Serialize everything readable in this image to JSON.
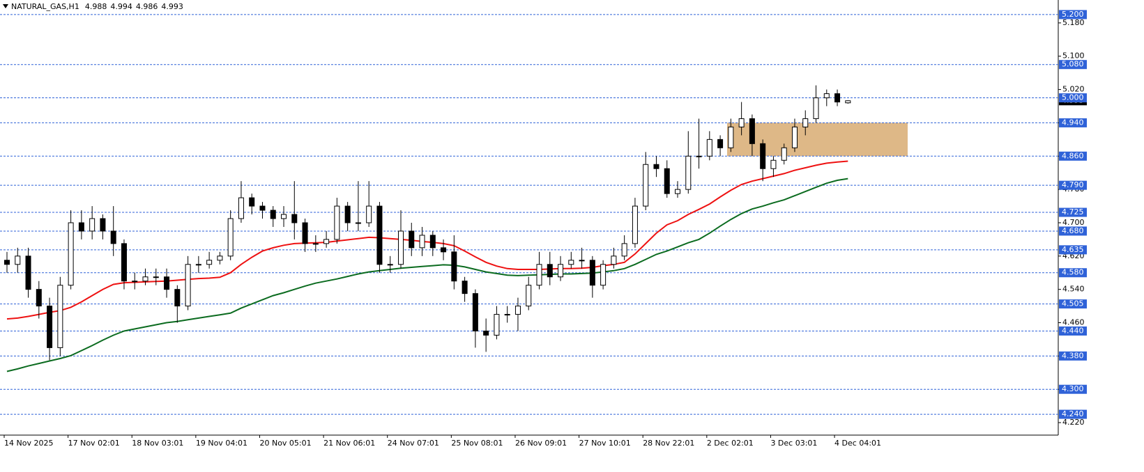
{
  "chart_data": {
    "type": "candlestick",
    "symbol": "NATURAL_GAS,H1",
    "categories": [
      "14 Nov 2025",
      null,
      null,
      null,
      null,
      null,
      "17 Nov 02:01",
      null,
      null,
      null,
      null,
      null,
      "18 Nov 03:01",
      null,
      null,
      null,
      null,
      null,
      "19 Nov 04:01",
      null,
      null,
      null,
      null,
      null,
      "20 Nov 05:01",
      null,
      null,
      null,
      null,
      null,
      "21 Nov 06:01",
      null,
      null,
      null,
      null,
      null,
      "24 Nov 07:01",
      null,
      null,
      null,
      null,
      null,
      "25 Nov 08:01",
      null,
      null,
      null,
      null,
      null,
      "26 Nov 09:01",
      null,
      null,
      null,
      null,
      null,
      "27 Nov 10:01",
      null,
      null,
      null,
      null,
      null,
      "28 Nov 22:01",
      null,
      null,
      null,
      null,
      null,
      "2 Dec 02:01",
      null,
      null,
      null,
      null,
      null,
      "3 Dec 03:01",
      null,
      null,
      null,
      null,
      null,
      "4 Dec 04:01",
      null
    ],
    "open": [
      4.61,
      4.6,
      4.62,
      4.54,
      4.5,
      4.4,
      4.55,
      4.7,
      4.68,
      4.71,
      4.68,
      4.65,
      4.56,
      4.56,
      4.57,
      4.57,
      4.54,
      4.5,
      4.6,
      4.6,
      4.61,
      4.62,
      4.71,
      4.76,
      4.74,
      4.73,
      4.71,
      4.72,
      4.7,
      4.65,
      4.65,
      4.66,
      4.74,
      4.7,
      4.7,
      4.74,
      4.6,
      4.6,
      4.68,
      4.64,
      4.67,
      4.64,
      4.63,
      4.56,
      4.53,
      4.44,
      4.43,
      4.48,
      4.48,
      4.5,
      4.55,
      4.6,
      4.57,
      4.6,
      4.61,
      4.61,
      4.55,
      4.6,
      4.62,
      4.65,
      4.74,
      4.84,
      4.83,
      4.77,
      4.78,
      4.86,
      4.86,
      4.9,
      4.88,
      4.93,
      4.95,
      4.89,
      4.83,
      4.85,
      4.88,
      4.93,
      4.95,
      5.0,
      5.01,
      4.988
    ],
    "high": [
      4.63,
      4.64,
      4.64,
      4.56,
      4.52,
      4.57,
      4.73,
      4.73,
      4.74,
      4.72,
      4.74,
      4.66,
      4.58,
      4.59,
      4.59,
      4.59,
      4.55,
      4.62,
      4.62,
      4.63,
      4.63,
      4.73,
      4.8,
      4.77,
      4.75,
      4.74,
      4.74,
      4.8,
      4.71,
      4.67,
      4.68,
      4.76,
      4.75,
      4.8,
      4.8,
      4.75,
      4.62,
      4.73,
      4.7,
      4.69,
      4.68,
      4.66,
      4.67,
      4.57,
      4.54,
      4.47,
      4.5,
      4.5,
      4.52,
      4.57,
      4.63,
      4.63,
      4.62,
      4.63,
      4.64,
      4.62,
      4.61,
      4.64,
      4.67,
      4.76,
      4.87,
      4.86,
      4.85,
      4.8,
      4.92,
      4.95,
      4.92,
      4.91,
      4.95,
      4.99,
      4.96,
      4.9,
      4.86,
      4.89,
      4.95,
      4.97,
      5.03,
      5.02,
      5.02,
      4.994
    ],
    "low": [
      4.58,
      4.58,
      4.52,
      4.47,
      4.37,
      4.38,
      4.54,
      4.66,
      4.66,
      4.66,
      4.62,
      4.54,
      4.54,
      4.55,
      4.55,
      4.52,
      4.46,
      4.49,
      4.58,
      4.59,
      4.6,
      4.61,
      4.7,
      4.72,
      4.71,
      4.69,
      4.69,
      4.66,
      4.63,
      4.63,
      4.64,
      4.65,
      4.68,
      4.68,
      4.69,
      4.58,
      4.58,
      4.59,
      4.62,
      4.62,
      4.62,
      4.61,
      4.54,
      4.51,
      4.4,
      4.39,
      4.42,
      4.46,
      4.44,
      4.49,
      4.54,
      4.55,
      4.56,
      4.59,
      4.59,
      4.52,
      4.54,
      4.59,
      4.61,
      4.64,
      4.73,
      4.81,
      4.76,
      4.76,
      4.77,
      4.83,
      4.85,
      4.86,
      4.87,
      4.91,
      4.86,
      4.8,
      4.81,
      4.84,
      4.87,
      4.91,
      4.94,
      4.98,
      4.98,
      4.986
    ],
    "close": [
      4.6,
      4.62,
      4.54,
      4.5,
      4.4,
      4.55,
      4.7,
      4.68,
      4.71,
      4.68,
      4.65,
      4.56,
      4.56,
      4.57,
      4.57,
      4.54,
      4.5,
      4.6,
      4.6,
      4.61,
      4.62,
      4.71,
      4.76,
      4.74,
      4.73,
      4.71,
      4.72,
      4.7,
      4.65,
      4.65,
      4.66,
      4.74,
      4.7,
      4.7,
      4.74,
      4.6,
      4.6,
      4.68,
      4.64,
      4.67,
      4.64,
      4.63,
      4.56,
      4.53,
      4.44,
      4.43,
      4.48,
      4.48,
      4.5,
      4.55,
      4.6,
      4.57,
      4.6,
      4.61,
      4.61,
      4.55,
      4.6,
      4.62,
      4.65,
      4.74,
      4.84,
      4.83,
      4.77,
      4.78,
      4.86,
      4.86,
      4.9,
      4.88,
      4.93,
      4.95,
      4.89,
      4.83,
      4.85,
      4.88,
      4.93,
      4.95,
      5.0,
      5.01,
      4.99,
      4.993
    ],
    "series": [
      {
        "color": "#ee1111",
        "values": [
          4.469,
          4.471,
          4.475,
          4.48,
          4.485,
          4.489,
          4.497,
          4.51,
          4.525,
          4.54,
          4.552,
          4.556,
          4.557,
          4.558,
          4.559,
          4.56,
          4.562,
          4.564,
          4.566,
          4.567,
          4.569,
          4.58,
          4.6,
          4.617,
          4.632,
          4.64,
          4.646,
          4.65,
          4.651,
          4.652,
          4.653,
          4.656,
          4.659,
          4.662,
          4.665,
          4.664,
          4.662,
          4.66,
          4.658,
          4.655,
          4.653,
          4.65,
          4.645,
          4.632,
          4.618,
          4.605,
          4.596,
          4.59,
          4.588,
          4.588,
          4.588,
          4.589,
          4.59,
          4.59,
          4.591,
          4.593,
          4.597,
          4.6,
          4.605,
          4.625,
          4.65,
          4.675,
          4.695,
          4.705,
          4.72,
          4.732,
          4.745,
          4.762,
          4.778,
          4.792,
          4.8,
          4.806,
          4.812,
          4.818,
          4.826,
          4.832,
          4.838,
          4.843,
          4.846,
          4.848
        ]
      },
      {
        "color": "#0b6b1f",
        "values": [
          4.343,
          4.349,
          4.356,
          4.362,
          4.368,
          4.374,
          4.381,
          4.393,
          4.405,
          4.418,
          4.43,
          4.44,
          4.445,
          4.45,
          4.455,
          4.46,
          4.463,
          4.467,
          4.471,
          4.475,
          4.479,
          4.483,
          4.495,
          4.505,
          4.515,
          4.525,
          4.532,
          4.54,
          4.548,
          4.555,
          4.56,
          4.565,
          4.571,
          4.577,
          4.582,
          4.585,
          4.588,
          4.591,
          4.593,
          4.595,
          4.597,
          4.599,
          4.598,
          4.594,
          4.588,
          4.582,
          4.578,
          4.574,
          4.573,
          4.574,
          4.575,
          4.576,
          4.577,
          4.577,
          4.578,
          4.579,
          4.582,
          4.585,
          4.59,
          4.6,
          4.612,
          4.624,
          4.632,
          4.642,
          4.652,
          4.66,
          4.675,
          4.692,
          4.708,
          4.722,
          4.733,
          4.74,
          4.748,
          4.755,
          4.765,
          4.775,
          4.785,
          4.795,
          4.802,
          4.806
        ]
      }
    ],
    "ylim": [
      4.19,
      5.235
    ],
    "yticks": [
      {
        "value": 4.22,
        "label": "4.220"
      },
      {
        "value": 4.3,
        "label": "4.300"
      },
      {
        "value": 4.38,
        "label": "4.380"
      },
      {
        "value": 4.46,
        "label": "4.460"
      },
      {
        "value": 4.54,
        "label": "4.540"
      },
      {
        "value": 4.62,
        "label": "4.620"
      },
      {
        "value": 4.7,
        "label": "4.700"
      },
      {
        "value": 4.78,
        "label": "4.780"
      },
      {
        "value": 4.86,
        "label": "4.860"
      },
      {
        "value": 4.94,
        "label": "4.940"
      },
      {
        "value": 5.02,
        "label": "5.020"
      },
      {
        "value": 5.1,
        "label": "5.100"
      },
      {
        "value": 5.18,
        "label": "5.180"
      }
    ],
    "levels": [
      {
        "value": 5.2,
        "label": "5.200"
      },
      {
        "value": 5.08,
        "label": "5.080"
      },
      {
        "value": 5.0,
        "label": "5.000"
      },
      {
        "value": 4.94,
        "label": "4.940"
      },
      {
        "value": 4.86,
        "label": "4.860"
      },
      {
        "value": 4.79,
        "label": "4.790"
      },
      {
        "value": 4.725,
        "label": "4.725"
      },
      {
        "value": 4.68,
        "label": "4.680"
      },
      {
        "value": 4.635,
        "label": "4.635"
      },
      {
        "value": 4.58,
        "label": "4.580"
      },
      {
        "value": 4.505,
        "label": "4.505"
      },
      {
        "value": 4.44,
        "label": "4.440"
      },
      {
        "value": 4.38,
        "label": "4.380"
      },
      {
        "value": 4.3,
        "label": "4.300"
      },
      {
        "value": 4.24,
        "label": "4.240"
      }
    ],
    "level_color": "#2f62d8",
    "current": 4.993,
    "zone": {
      "low": 4.86,
      "high": 4.94,
      "color": "#deb887"
    },
    "up_color": "#ffffff",
    "down_color": "#000000"
  }
}
